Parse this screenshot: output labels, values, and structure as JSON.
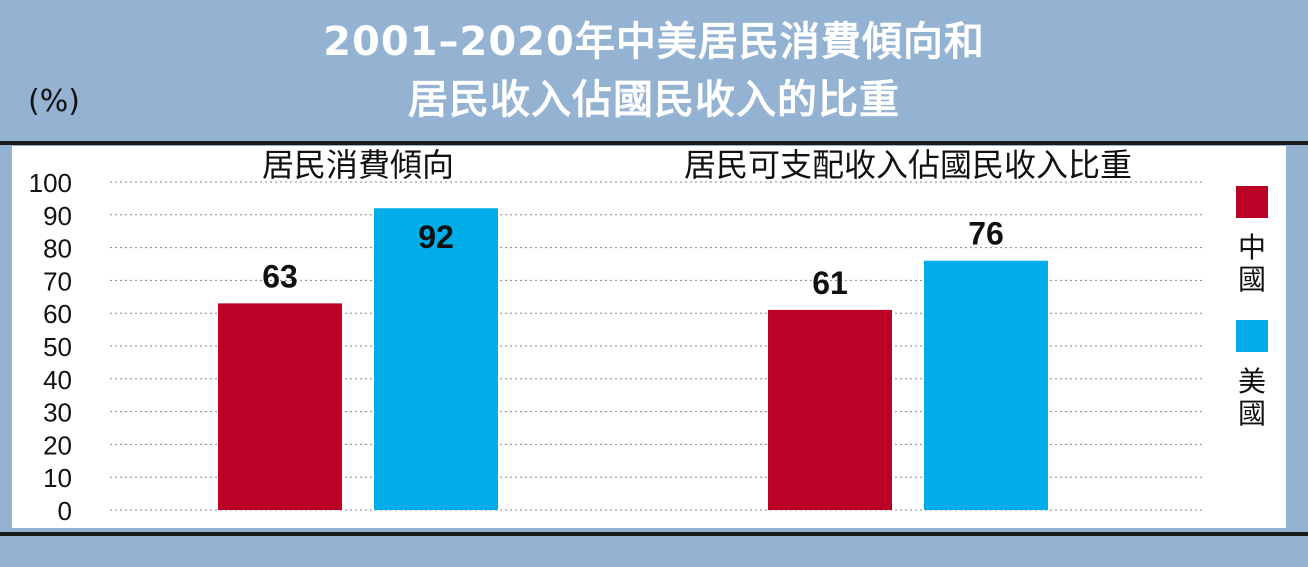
{
  "title": {
    "line1": "2001–2020年中美居民消費傾向和",
    "line2": "居民收入佔國民收入的比重"
  },
  "unit_label": "(%)",
  "colors": {
    "china": "#bd0026",
    "usa": "#00ade8",
    "frame": "#94b3d3"
  },
  "legend": [
    {
      "name": "中國",
      "color": "#bd0026"
    },
    {
      "name": "美國",
      "color": "#00ade8"
    }
  ],
  "chart_data": {
    "type": "bar",
    "title": "2001–2020年中美居民消費傾向和居民收入佔國民收入的比重",
    "ylabel": "(%)",
    "ylim": [
      0,
      100
    ],
    "yticks": [
      "0",
      "10",
      "20",
      "30",
      "40",
      "50",
      "60",
      "70",
      "80",
      "90",
      "100"
    ],
    "grid": true,
    "legend_position": "right",
    "categories": [
      "居民消費傾向",
      "居民可支配收入佔國民收入比重"
    ],
    "series": [
      {
        "name": "中國",
        "values": [
          63,
          61
        ]
      },
      {
        "name": "美國",
        "values": [
          92,
          76
        ]
      }
    ]
  }
}
